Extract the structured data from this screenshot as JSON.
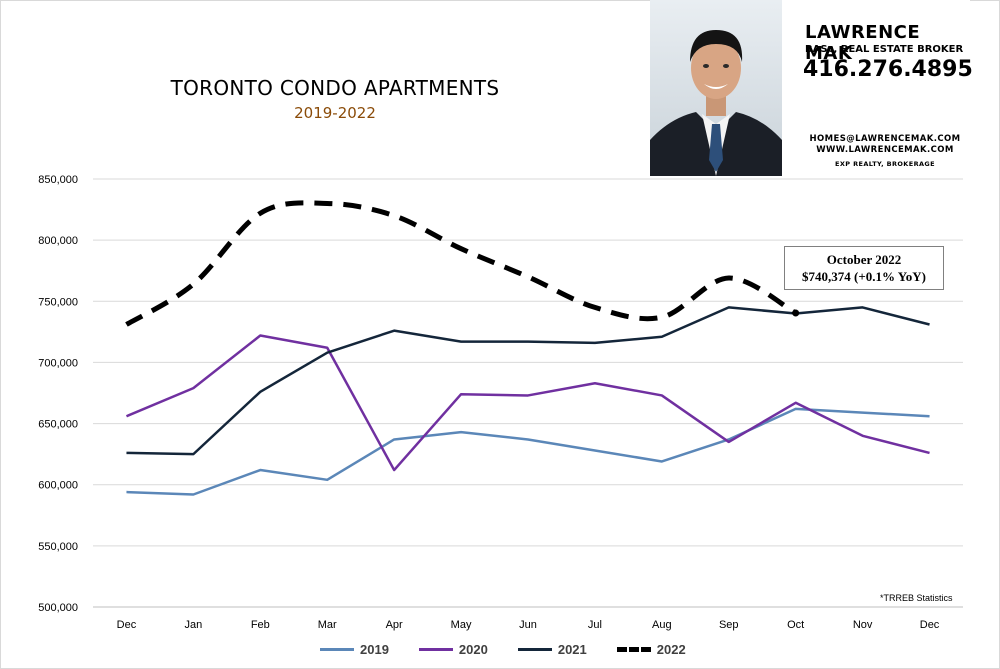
{
  "chart_data": {
    "type": "line",
    "title": "TORONTO CONDO APARTMENTS",
    "subtitle": "2019-2022",
    "categories": [
      "Dec",
      "Jan",
      "Feb",
      "Mar",
      "Apr",
      "May",
      "Jun",
      "Jul",
      "Aug",
      "Sep",
      "Oct",
      "Nov",
      "Dec"
    ],
    "ylim": [
      500000,
      850000
    ],
    "yticks": [
      "500,000",
      "550,000",
      "600,000",
      "650,000",
      "700,000",
      "750,000",
      "800,000",
      "850,000"
    ],
    "grid": true,
    "legend_position": "bottom",
    "series": [
      {
        "name": "2019",
        "color": "#5b87b8",
        "style": "solid",
        "values": [
          594000,
          592000,
          612000,
          604000,
          637000,
          643000,
          637000,
          628000,
          619000,
          637000,
          662000,
          659000,
          656000
        ]
      },
      {
        "name": "2020",
        "color": "#7030a0",
        "style": "solid",
        "values": [
          656000,
          679000,
          722000,
          712000,
          612000,
          674000,
          673000,
          683000,
          673000,
          635000,
          667000,
          640000,
          626000
        ]
      },
      {
        "name": "2021",
        "color": "#14263a",
        "style": "solid",
        "values": [
          626000,
          625000,
          676000,
          708000,
          726000,
          717000,
          717000,
          716000,
          721000,
          745000,
          740000,
          745000,
          731000
        ]
      },
      {
        "name": "2022",
        "color": "#000000",
        "style": "dashed",
        "values": [
          731000,
          764000,
          822000,
          830000,
          820000,
          793000,
          770000,
          745000,
          737000,
          769000,
          740374,
          null,
          null
        ]
      }
    ],
    "annotation": {
      "lines": [
        "October 2022",
        "$740,374  (+0.1%  YoY)"
      ],
      "category": "Oct",
      "value": 740374
    },
    "source_note": "*TRREB Statistics"
  },
  "card": {
    "name": "LAWRENCE MAK",
    "credentials": "BASc, REAL ESTATE BROKER",
    "phone": "416.276.4895",
    "email": "HOMES@LAWRENCEMAK.COM",
    "website": "WWW.LAWRENCEMAK.COM",
    "brokerage": "EXP REALTY, BROKERAGE",
    "photo_icon": "agent-portrait-icon"
  }
}
